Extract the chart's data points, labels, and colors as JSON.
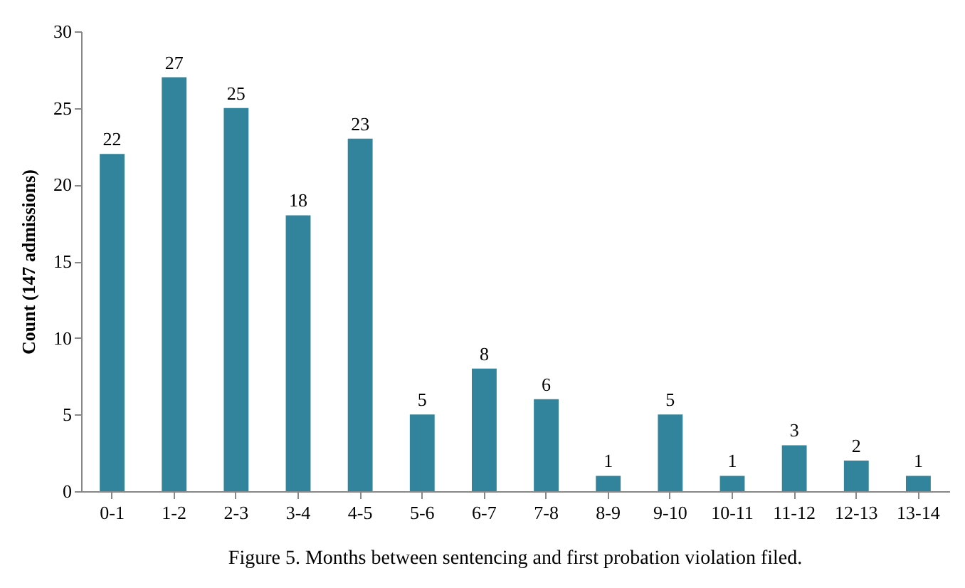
{
  "chart_data": {
    "type": "bar",
    "title": "Figure 5.  Months between sentencing and first probation violation filed.",
    "ylabel": "Count (147 admissions)",
    "categories": [
      "0-1",
      "1-2",
      "2-3",
      "3-4",
      "4-5",
      "5-6",
      "6-7",
      "7-8",
      "8-9",
      "9-10",
      "10-11",
      "11-12",
      "12-13",
      "13-14"
    ],
    "values": [
      22,
      27,
      25,
      18,
      23,
      5,
      8,
      6,
      1,
      5,
      1,
      3,
      2,
      1
    ],
    "color": "#31849b",
    "ylim": [
      0,
      30
    ],
    "yticks": [
      0,
      5,
      10,
      15,
      20,
      25,
      30
    ],
    "data_labels": true
  }
}
